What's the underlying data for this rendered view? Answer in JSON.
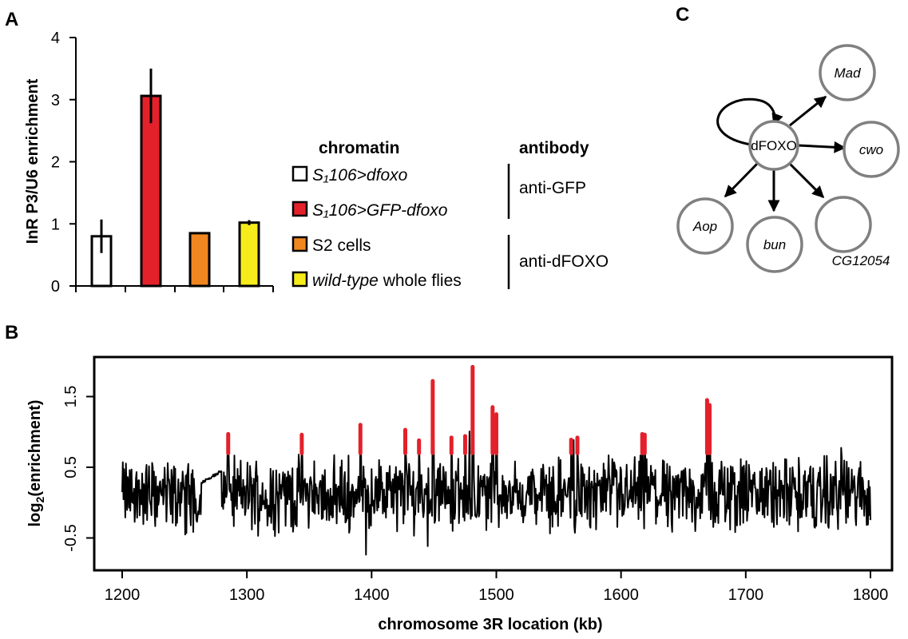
{
  "panels": {
    "a": "A",
    "b": "B",
    "c": "C"
  },
  "chart_data": [
    {
      "type": "bar",
      "panel": "A",
      "ylabel": "InR P3/U6 enrichment",
      "ylim": [
        0,
        4
      ],
      "yticks": [
        "0",
        "1",
        "2",
        "3",
        "4"
      ],
      "bars": [
        {
          "value": 0.8,
          "error": 0.27,
          "color": "#ffffff"
        },
        {
          "value": 3.06,
          "error": 0.44,
          "color": "#e3212b"
        },
        {
          "value": 0.85,
          "error": 0.0,
          "color": "#f0861f"
        },
        {
          "value": 1.02,
          "error": 0.04,
          "color": "#f7ec1b"
        }
      ],
      "legend": {
        "col1_header": "chromatin",
        "col2_header": "antibody",
        "entries": [
          {
            "color": "#ffffff",
            "italic": "S₁106>dfoxo",
            "plain": ""
          },
          {
            "color": "#e3212b",
            "italic": "S₁106>GFP-dfoxo",
            "plain": ""
          },
          {
            "color": "#f0861f",
            "italic": "",
            "plain": "S2 cells"
          },
          {
            "color": "#f7ec1b",
            "italic": "wild-type",
            "plain": " whole flies"
          }
        ],
        "antibodies": [
          "anti-GFP",
          "anti-dFOXO"
        ]
      }
    },
    {
      "type": "line",
      "panel": "B",
      "xlabel": "chromosome 3R location (kb)",
      "ylabel": "log2(enrichment)",
      "xlim": [
        1200,
        1800
      ],
      "ylim": [
        -0.75,
        1.95
      ],
      "xticks": [
        "1200",
        "1300",
        "1400",
        "1500",
        "1600",
        "1700",
        "1800"
      ],
      "yticks": [
        "-0.5",
        "0.5",
        "1.5"
      ],
      "line_color": "#000000",
      "peak_color": "#e3212b",
      "peak_threshold": 0.7,
      "peaks": [
        {
          "x": 1285,
          "y": 0.97
        },
        {
          "x": 1344,
          "y": 0.96
        },
        {
          "x": 1391,
          "y": 1.1
        },
        {
          "x": 1427,
          "y": 1.03
        },
        {
          "x": 1438,
          "y": 0.88
        },
        {
          "x": 1449,
          "y": 1.72
        },
        {
          "x": 1464,
          "y": 0.92
        },
        {
          "x": 1475,
          "y": 0.94
        },
        {
          "x": 1481,
          "y": 1.92
        },
        {
          "x": 1497,
          "y": 1.35
        },
        {
          "x": 1500,
          "y": 1.25
        },
        {
          "x": 1560,
          "y": 0.89
        },
        {
          "x": 1565,
          "y": 0.92
        },
        {
          "x": 1617,
          "y": 0.97
        },
        {
          "x": 1619,
          "y": 0.96
        },
        {
          "x": 1669,
          "y": 1.45
        },
        {
          "x": 1671,
          "y": 1.38
        }
      ]
    }
  ],
  "network": {
    "center": "dFOXO",
    "targets": [
      "Mad",
      "cwo",
      "Aop",
      "bun",
      "CG12054"
    ]
  }
}
